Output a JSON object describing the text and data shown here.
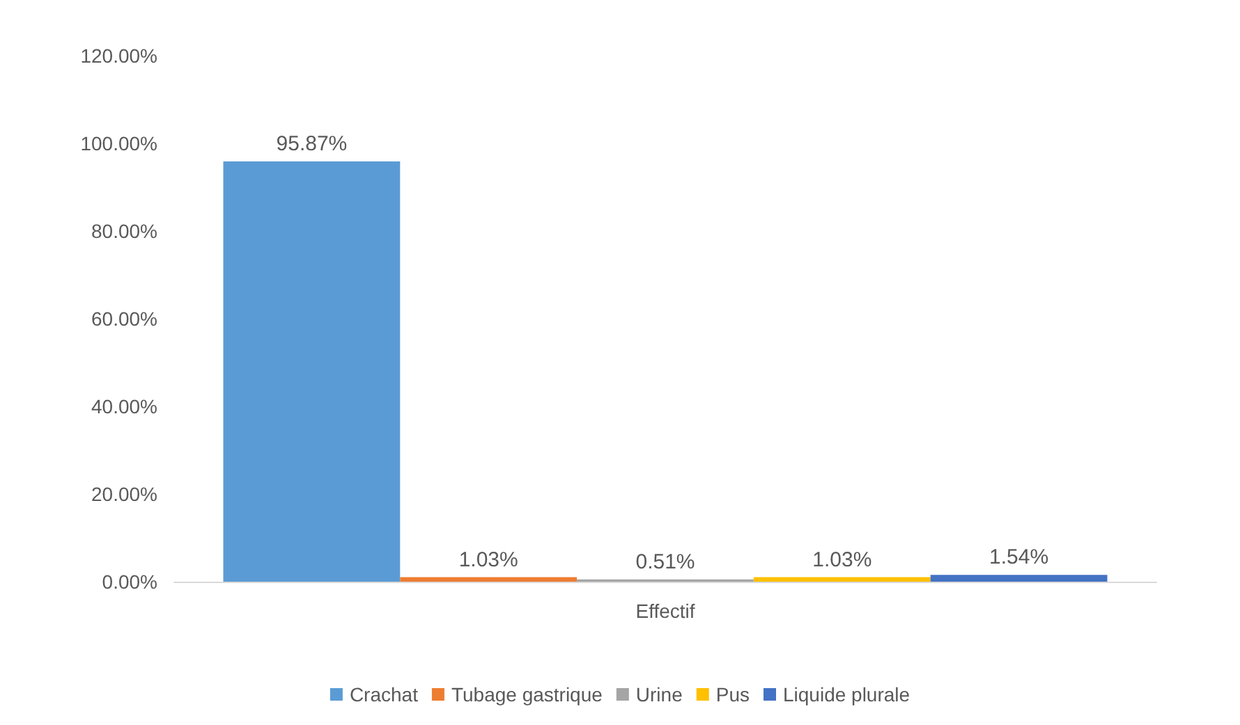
{
  "chart_data": {
    "type": "bar",
    "categories": [
      "Effectif"
    ],
    "series": [
      {
        "name": "Crachat",
        "color": "#5b9bd5",
        "values": [
          95.87
        ],
        "value_labels": [
          "95.87%"
        ]
      },
      {
        "name": "Tubage gastrique",
        "color": "#ed7d31",
        "values": [
          1.03
        ],
        "value_labels": [
          "1.03%"
        ]
      },
      {
        "name": "Urine",
        "color": "#a5a5a5",
        "values": [
          0.51
        ],
        "value_labels": [
          "0.51%"
        ]
      },
      {
        "name": "Pus",
        "color": "#ffc000",
        "values": [
          1.03
        ],
        "value_labels": [
          "1.03%"
        ]
      },
      {
        "name": "Liquide plurale",
        "color": "#4472c4",
        "values": [
          1.54
        ],
        "value_labels": [
          "1.54%"
        ]
      }
    ],
    "ylim": [
      0,
      120
    ],
    "yticks": [
      {
        "value": 0,
        "label": "0.00%"
      },
      {
        "value": 20,
        "label": "20.00%"
      },
      {
        "value": 40,
        "label": "40.00%"
      },
      {
        "value": 60,
        "label": "60.00%"
      },
      {
        "value": 80,
        "label": "80.00%"
      },
      {
        "value": 100,
        "label": "100.00%"
      },
      {
        "value": 120,
        "label": "120.00%"
      }
    ],
    "grid": false,
    "legend": "bottom"
  }
}
